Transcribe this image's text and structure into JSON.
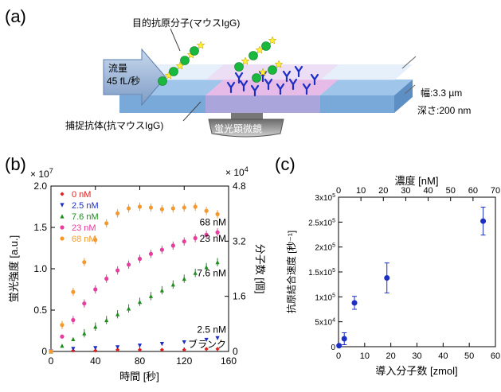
{
  "panels": {
    "a": "(a)",
    "b": "(b)",
    "c": "(c)"
  },
  "diagram": {
    "target_label": "目的抗原分子(マウスIgG)",
    "flow_line1": "流量",
    "flow_line2": "45 fL/秒",
    "width_label": "幅:3.3 µm",
    "depth_label": "深さ:200 nm",
    "capture_label": "捕捉抗体(抗マウスIgG)",
    "microscope_label": "蛍光顕微鏡"
  },
  "chart_data": [
    {
      "type": "scatter",
      "panel": "b",
      "xlabel": "時間 [秒]",
      "ylabel": "蛍光強度 [a.u.]",
      "y2label": "分子数 [個]",
      "y_multiplier": "× 10",
      "y_multiplier_exp": "7",
      "y2_multiplier": "× 10",
      "y2_multiplier_exp": "4",
      "xlim": [
        0,
        160
      ],
      "ylim": [
        0,
        2.0
      ],
      "y2lim": [
        0,
        4.8
      ],
      "xticks": [
        "0",
        "40",
        "80",
        "120",
        "160"
      ],
      "yticks": [
        "0",
        "0.5",
        "1.0",
        "1.5",
        "2.0"
      ],
      "y2ticks": [
        "0",
        "1.6",
        "3.2",
        "4.8"
      ],
      "legend_position": "top-left",
      "series": [
        {
          "name": "0 nM",
          "color": "#e02020",
          "marker": "diamond",
          "end_label": "ブランク",
          "x": [
            0,
            20,
            40,
            60,
            80,
            100,
            120,
            140,
            150
          ],
          "y": [
            0.0,
            0.01,
            0.01,
            0.02,
            0.02,
            0.02,
            0.02,
            0.03,
            0.03
          ]
        },
        {
          "name": "2.5 nM",
          "color": "#1c2fc4",
          "marker": "triangle-down",
          "end_label": "2.5 nM",
          "x": [
            0,
            20,
            40,
            60,
            80,
            100,
            120,
            140,
            150
          ],
          "y": [
            0.0,
            0.03,
            0.04,
            0.05,
            0.07,
            0.09,
            0.11,
            0.14,
            0.16
          ]
        },
        {
          "name": "7.6 nM",
          "color": "#1e8c1e",
          "marker": "triangle-up",
          "end_label": "7.6 nM",
          "x": [
            0,
            10,
            20,
            30,
            40,
            50,
            60,
            70,
            80,
            90,
            100,
            110,
            120,
            130,
            140,
            150
          ],
          "y": [
            0.0,
            0.07,
            0.15,
            0.22,
            0.3,
            0.38,
            0.45,
            0.52,
            0.6,
            0.67,
            0.74,
            0.81,
            0.88,
            0.95,
            1.02,
            1.08
          ]
        },
        {
          "name": "23 nM",
          "color": "#e83c9e",
          "marker": "circle",
          "end_label": "23 nM",
          "x": [
            0,
            10,
            20,
            30,
            40,
            50,
            60,
            70,
            80,
            90,
            100,
            110,
            120,
            130,
            140,
            150
          ],
          "y": [
            0.0,
            0.18,
            0.38,
            0.58,
            0.75,
            0.88,
            0.98,
            1.05,
            1.12,
            1.18,
            1.23,
            1.28,
            1.33,
            1.37,
            1.41,
            1.44
          ]
        },
        {
          "name": "68 nM",
          "color": "#f59a2a",
          "marker": "circle",
          "end_label": "68 nM",
          "x": [
            0,
            10,
            20,
            30,
            40,
            50,
            60,
            70,
            80,
            90,
            100,
            110,
            120,
            130,
            140,
            150
          ],
          "y": [
            0.0,
            0.32,
            0.72,
            1.08,
            1.35,
            1.55,
            1.67,
            1.73,
            1.75,
            1.74,
            1.72,
            1.73,
            1.74,
            1.75,
            1.7,
            1.66
          ]
        }
      ]
    },
    {
      "type": "scatter",
      "panel": "c",
      "xlabel": "導入分子数 [zmol]",
      "x2label": "濃度 [nM]",
      "ylabel": "抗原結合速度 [秒⁻¹]",
      "xlim": [
        0,
        60
      ],
      "x2lim": [
        0,
        70
      ],
      "ylim": [
        0,
        300000
      ],
      "xticks": [
        "0",
        "10",
        "20",
        "30",
        "40",
        "50",
        "60"
      ],
      "x2ticks": [
        "0",
        "10",
        "20",
        "30",
        "40",
        "50",
        "60",
        "70"
      ],
      "yticks": [
        {
          "mant": "0",
          "exp": ""
        },
        {
          "mant": "5x10",
          "exp": "4"
        },
        {
          "mant": "1x10",
          "exp": "5"
        },
        {
          "mant": "1.5x10",
          "exp": "5"
        },
        {
          "mant": "2x10",
          "exp": "5"
        },
        {
          "mant": "2.5x10",
          "exp": "5"
        },
        {
          "mant": "3x10",
          "exp": "5"
        }
      ],
      "color": "#1c2fc4",
      "points": [
        {
          "x": 0.2,
          "y": 2000,
          "err": 2000
        },
        {
          "x": 2.2,
          "y": 16000,
          "err": 12000
        },
        {
          "x": 6.1,
          "y": 88000,
          "err": 13000
        },
        {
          "x": 18.5,
          "y": 138000,
          "err": 30000
        },
        {
          "x": 55.3,
          "y": 252000,
          "err": 28000
        }
      ]
    }
  ]
}
